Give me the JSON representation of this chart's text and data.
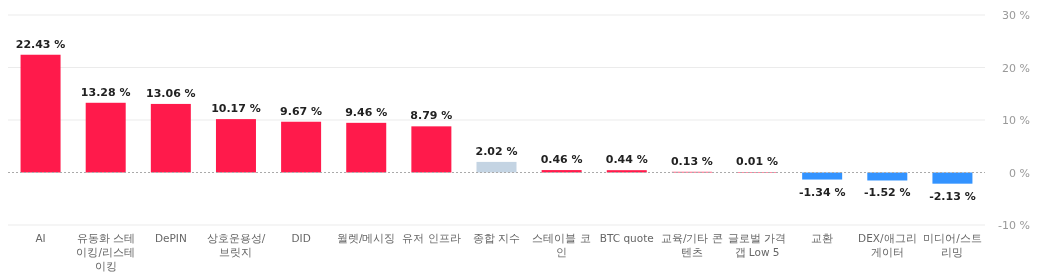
{
  "chart_data": {
    "type": "bar",
    "categories": [
      "AI",
      "유동화 스테이킹/리스테이킹",
      "DePIN",
      "상호운용성/브릿지",
      "DID",
      "월렛/메시징",
      "유저 인프라",
      "종합 지수",
      "스테이블 코인",
      "BTC quote",
      "교육/기타 콘텐츠",
      "글로벌 가격 갭 Low 5",
      "교환",
      "DEX/애그리게이터",
      "미디어/스트리밍"
    ],
    "values": [
      22.43,
      13.28,
      13.06,
      10.17,
      9.67,
      9.46,
      8.79,
      2.02,
      0.46,
      0.44,
      0.13,
      0.01,
      -1.34,
      -1.52,
      -2.13
    ],
    "value_labels": [
      "22.43 %",
      "13.28 %",
      "13.06 %",
      "10.17 %",
      "9.67 %",
      "9.46 %",
      "8.79 %",
      "2.02 %",
      "0.46 %",
      "0.44 %",
      "0.13 %",
      "0.01 %",
      "-1.34 %",
      "-1.52 %",
      "-2.13 %"
    ],
    "colors": [
      "#ff1a4b",
      "#ff1a4b",
      "#ff1a4b",
      "#ff1a4b",
      "#ff1a4b",
      "#ff1a4b",
      "#ff1a4b",
      "#c4d4e3",
      "#ff1a4b",
      "#ff1a4b",
      "#ff1a4b",
      "#ff1a4b",
      "#3393ff",
      "#3393ff",
      "#3393ff"
    ],
    "ylim": [
      -10,
      30
    ],
    "yticks": [
      {
        "value": 30,
        "label": "30 %"
      },
      {
        "value": 20,
        "label": "20 %"
      },
      {
        "value": 10,
        "label": "10 %"
      },
      {
        "value": 0,
        "label": "0 %"
      },
      {
        "value": -10,
        "label": "-10 %"
      }
    ],
    "grid": "y",
    "ref_lines": [
      {
        "axis": "y",
        "value": 0,
        "color": "#aaaaaa",
        "line_style": "dashed"
      }
    ]
  }
}
